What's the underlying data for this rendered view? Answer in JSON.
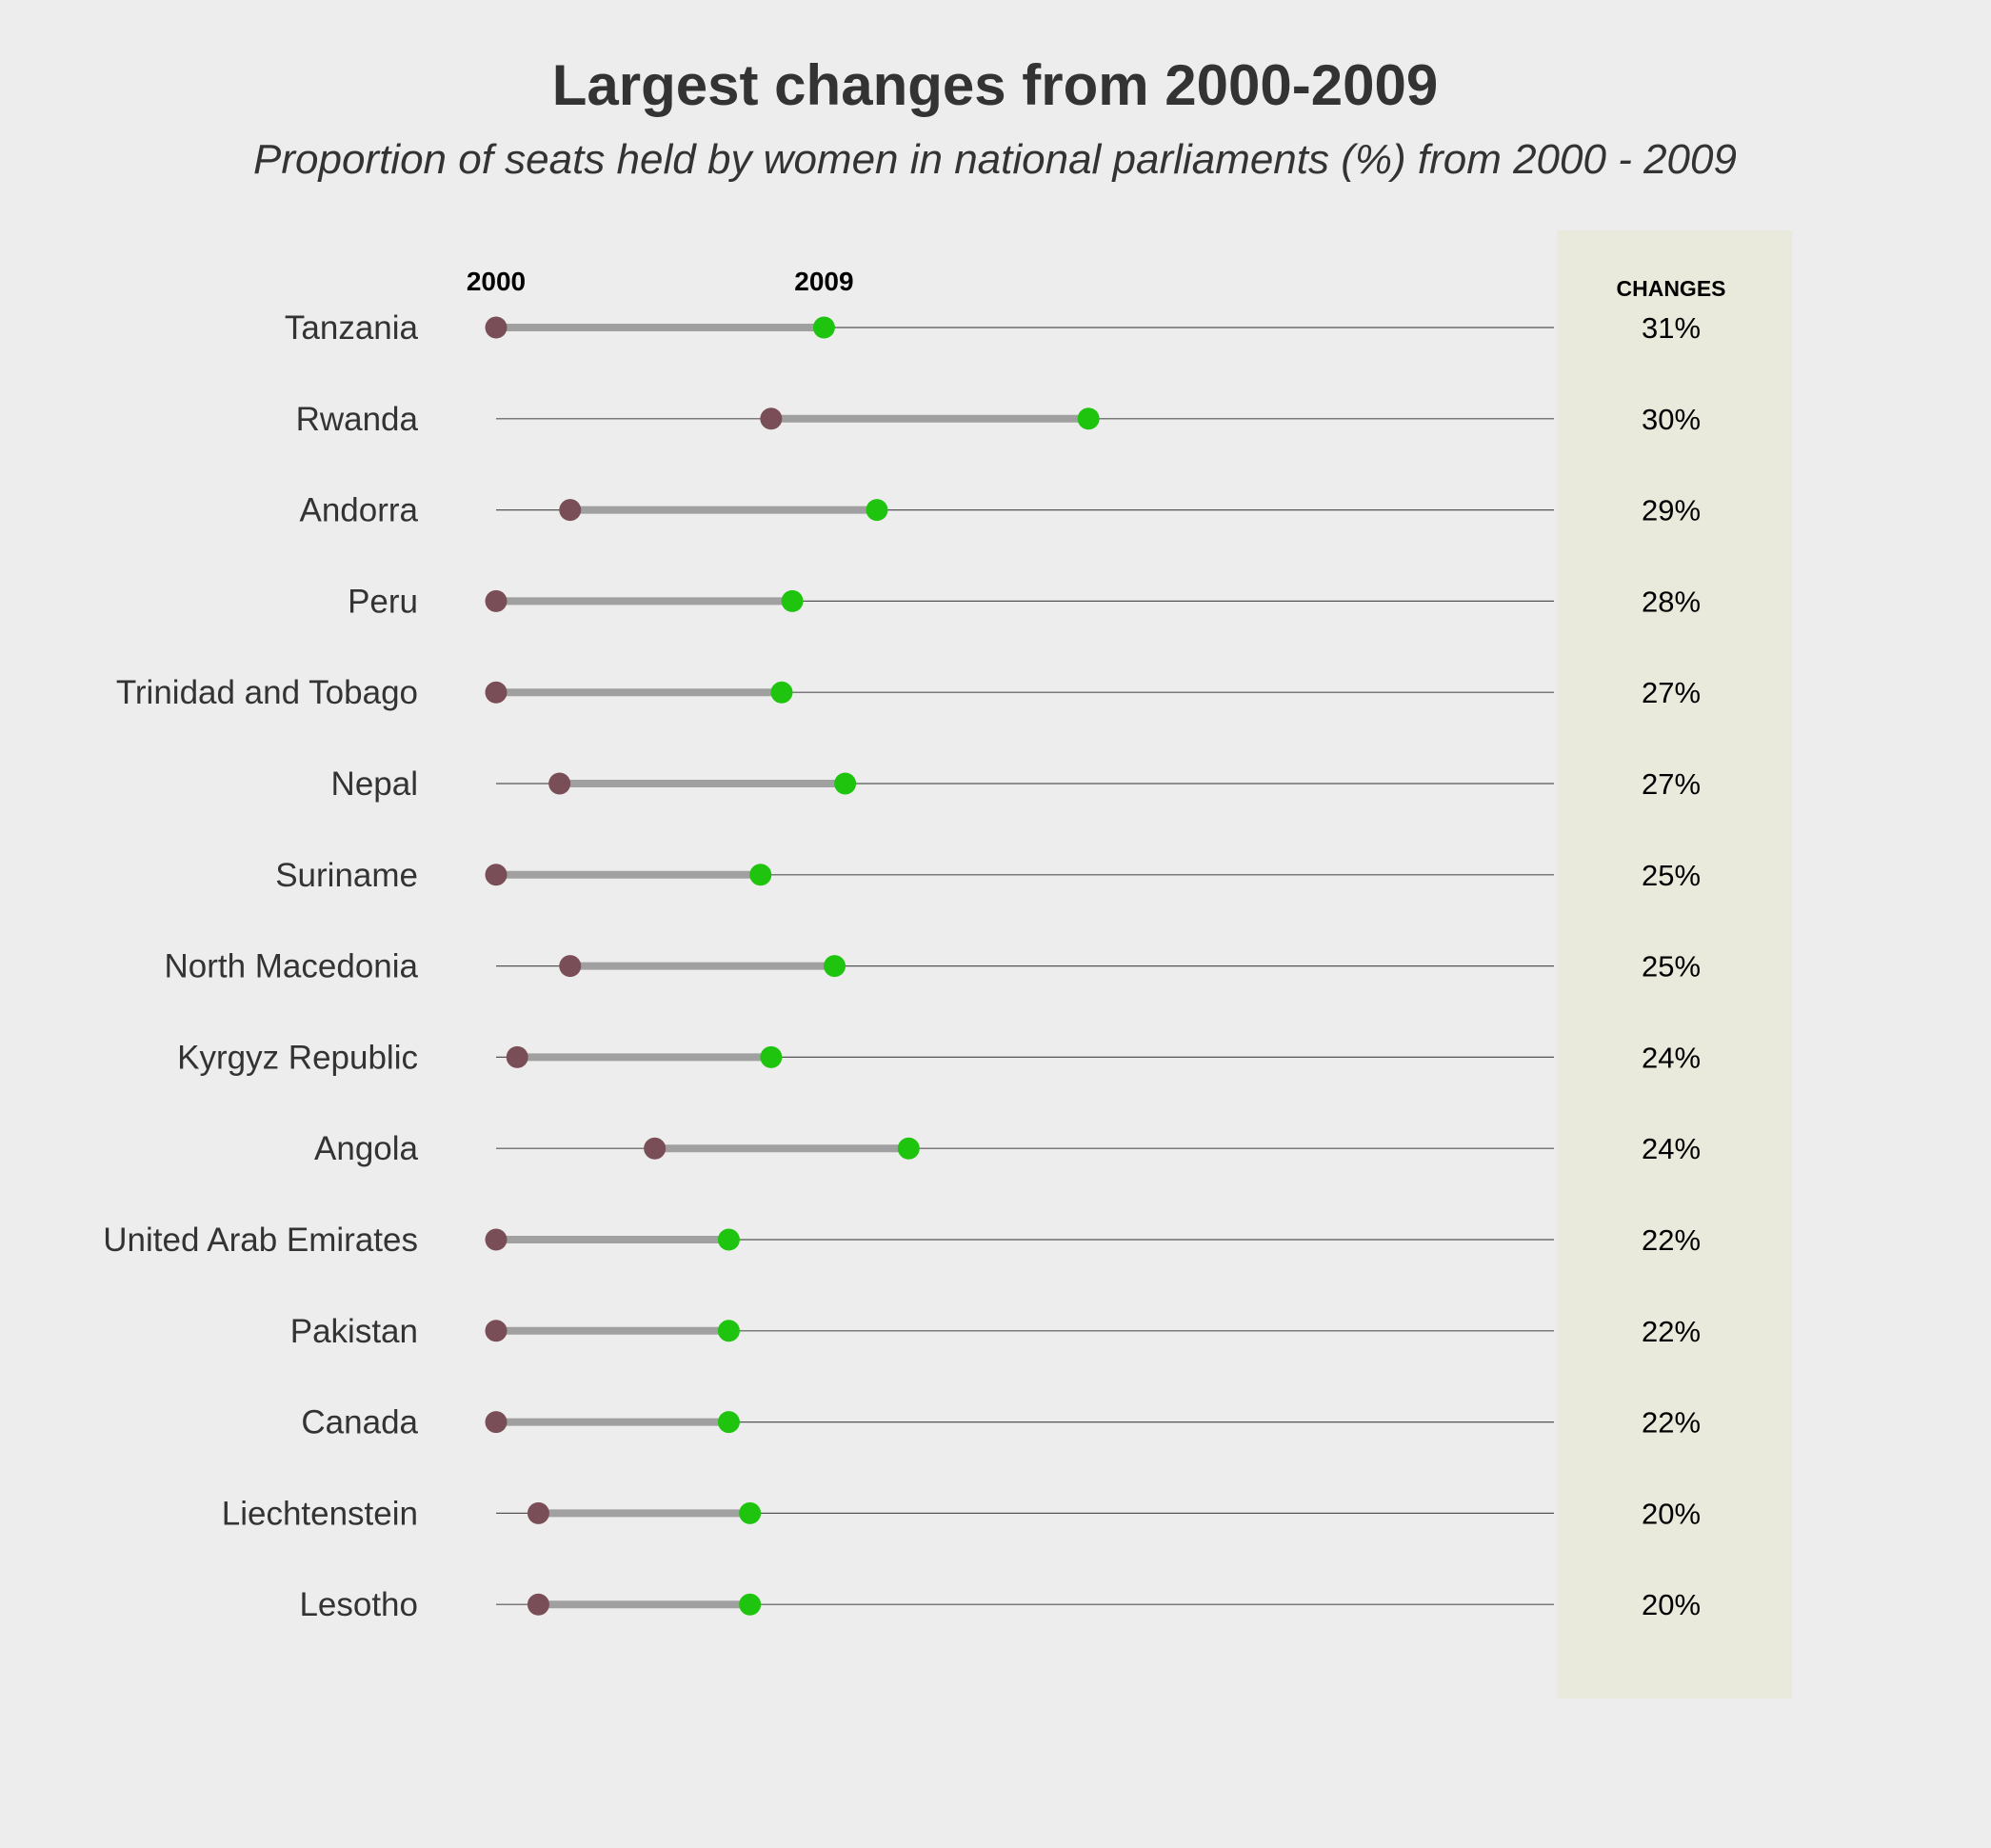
{
  "chart_data": {
    "type": "dumbbell",
    "title": "Largest changes from 2000-2009",
    "subtitle": "Proportion of seats held by women in national parliaments (%) from 2000 - 2009",
    "start_label": "2000",
    "end_label": "2009",
    "changes_header": "CHANGES",
    "x_range": [
      0,
      50
    ],
    "categories": [
      "Tanzania",
      "Rwanda",
      "Andorra",
      "Peru",
      "Trinidad and Tobago",
      "Nepal",
      "Suriname",
      "North Macedonia",
      "Kyrgyz Republic",
      "Angola",
      "United Arab Emirates",
      "Pakistan",
      "Canada",
      "Liechtenstein",
      "Lesotho"
    ],
    "series": [
      {
        "name": "2000",
        "values": [
          0,
          13,
          3.5,
          0,
          0,
          3,
          0,
          3.5,
          1,
          7.5,
          0,
          0,
          0,
          2,
          2
        ]
      },
      {
        "name": "2009",
        "values": [
          15.5,
          28,
          18,
          14,
          13.5,
          16.5,
          12.5,
          16,
          13,
          19.5,
          11,
          11,
          11,
          12,
          12
        ]
      }
    ],
    "changes": [
      "31%",
      "30%",
      "29%",
      "28%",
      "27%",
      "27%",
      "25%",
      "25%",
      "24%",
      "24%",
      "22%",
      "22%",
      "22%",
      "20%",
      "20%"
    ],
    "colors": {
      "start_dot": "#7a4e57",
      "end_dot": "#1ec40e",
      "segment": "#a0a0a0",
      "guide_line": "#555555",
      "changes_panel": "#e9eadc",
      "background": "#ededed"
    }
  }
}
